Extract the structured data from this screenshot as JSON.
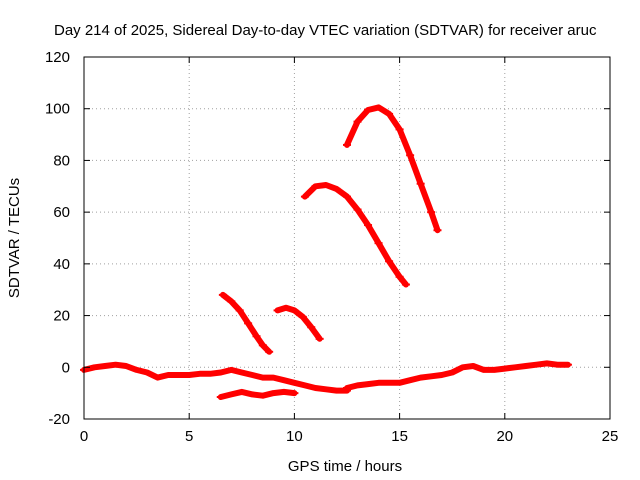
{
  "chart_data": {
    "type": "scatter",
    "title": "Day 214 of 2025, Sidereal Day-to-day VTEC variation (SDTVAR) for receiver aruc",
    "xlabel": "GPS time / hours",
    "ylabel": "SDTVAR / TECUs",
    "xlim": [
      0,
      25
    ],
    "ylim": [
      -20,
      120
    ],
    "xticks": [
      0,
      5,
      10,
      15,
      20,
      25
    ],
    "yticks": [
      -20,
      0,
      20,
      40,
      60,
      80,
      100,
      120
    ],
    "grid": true,
    "color": "#ff0000",
    "series": [
      {
        "name": "track-a",
        "x": [
          0,
          0.5,
          1,
          1.5,
          2,
          2.5,
          3,
          3.5,
          4,
          4.5,
          5,
          5.5,
          6,
          6.5,
          7,
          7.5,
          8,
          8.5,
          9,
          9.5,
          10,
          10.5,
          11,
          11.5,
          12,
          12.5
        ],
        "y": [
          -1,
          0,
          0.5,
          1,
          0.5,
          -1,
          -2,
          -4,
          -3,
          -3,
          -3,
          -2.5,
          -2.5,
          -2,
          -1,
          -2,
          -3,
          -4,
          -4,
          -5,
          -6,
          -7,
          -8,
          -8.5,
          -9,
          -9
        ]
      },
      {
        "name": "track-b",
        "x": [
          6.5,
          7,
          7.5,
          8,
          8.5,
          9,
          9.5,
          10
        ],
        "y": [
          -11.5,
          -10.5,
          -9.5,
          -10.5,
          -11,
          -10,
          -9.5,
          -10
        ]
      },
      {
        "name": "track-c",
        "x": [
          12.5,
          13,
          13.5,
          14,
          14.5,
          15,
          15.5,
          16,
          16.5,
          17,
          17.5,
          18,
          18.5,
          19,
          19.5,
          20,
          20.5,
          21,
          21.5,
          22,
          22.5,
          23
        ],
        "y": [
          -8,
          -7,
          -6.5,
          -6,
          -6,
          -6,
          -5,
          -4,
          -3.5,
          -3,
          -2,
          0,
          0.5,
          -1,
          -1,
          -0.5,
          0,
          0.5,
          1,
          1.5,
          1,
          1
        ]
      },
      {
        "name": "track-d",
        "x": [
          6.6,
          7,
          7.4,
          7.8,
          8.2,
          8.5,
          8.8
        ],
        "y": [
          28,
          25.5,
          22,
          17,
          12,
          8.5,
          6
        ]
      },
      {
        "name": "track-e",
        "x": [
          9.2,
          9.6,
          10,
          10.4,
          10.8,
          11.2
        ],
        "y": [
          22,
          23,
          22,
          19.5,
          15.5,
          11
        ]
      },
      {
        "name": "track-f",
        "x": [
          10.5,
          11,
          11.5,
          12,
          12.5,
          13,
          13.5,
          14,
          14.5,
          15,
          15.3
        ],
        "y": [
          66,
          70,
          70.5,
          69,
          66,
          61,
          55,
          48,
          41,
          35,
          32
        ]
      },
      {
        "name": "track-g",
        "x": [
          12.5,
          13,
          13.5,
          14,
          14.5,
          15,
          15.5,
          16,
          16.5,
          16.8
        ],
        "y": [
          86,
          95,
          99.5,
          100.5,
          98,
          92,
          82,
          71,
          60,
          53
        ]
      }
    ]
  }
}
